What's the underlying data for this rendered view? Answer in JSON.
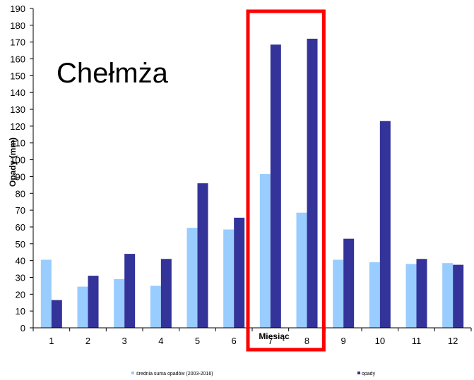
{
  "chart_data": {
    "type": "bar",
    "title": "",
    "annotation": "Chełmża",
    "xlabel": "Miesiąc",
    "ylabel": "Opady (mm)",
    "categories": [
      "1",
      "2",
      "3",
      "4",
      "5",
      "6",
      "7",
      "8",
      "9",
      "10",
      "11",
      "12"
    ],
    "ylim": [
      0,
      190
    ],
    "yticks": [
      0,
      10,
      20,
      30,
      40,
      50,
      60,
      70,
      80,
      90,
      100,
      110,
      120,
      130,
      140,
      150,
      160,
      170,
      180,
      190
    ],
    "series": [
      {
        "name": "średnia suma opadów (2003-2016)",
        "color": "#99ccff",
        "values": [
          40.5,
          24.5,
          29,
          25,
          59.5,
          58.5,
          91.5,
          68.5,
          40.5,
          39,
          38,
          38.5
        ]
      },
      {
        "name": "opady",
        "color": "#333399",
        "values": [
          16.5,
          31,
          44,
          41,
          86,
          65.5,
          168.5,
          172,
          53,
          123,
          41,
          37.5
        ]
      }
    ],
    "highlight": {
      "categories": [
        "7",
        "8"
      ],
      "color": "#ff0000"
    },
    "grid": false,
    "legend": "bottom"
  }
}
